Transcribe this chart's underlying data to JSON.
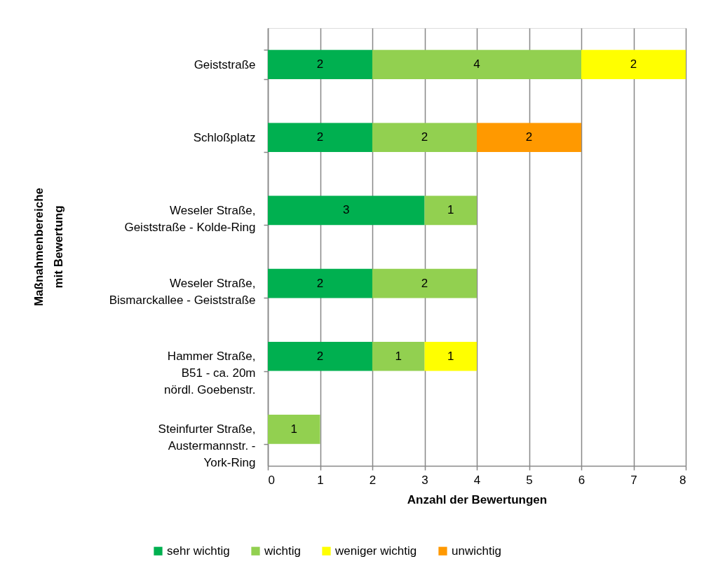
{
  "chart_data": {
    "type": "bar",
    "orientation": "horizontal",
    "stacked": true,
    "categories": [
      "Geiststraße",
      "Schloßplatz",
      "Weseler Straße,\nGeiststraße - Kolde-Ring",
      "Weseler Straße,\nBismarckallee - Geiststraße",
      "Hammer Straße,\nB51 - ca. 20m\nnördl. Goebenstr.",
      "Steinfurter Straße,\nAustermannstr. -\nYork-Ring"
    ],
    "series": [
      {
        "name": "sehr wichtig",
        "color": "#00b050",
        "values": [
          2,
          2,
          3,
          2,
          2,
          null
        ]
      },
      {
        "name": "wichtig",
        "color": "#92d050",
        "values": [
          4,
          2,
          1,
          2,
          1,
          1
        ]
      },
      {
        "name": "weniger wichtig",
        "color": "#ffff00",
        "values": [
          2,
          null,
          null,
          null,
          1,
          null
        ]
      },
      {
        "name": "unwichtig",
        "color": "#ff9900",
        "values": [
          null,
          2,
          null,
          null,
          null,
          null
        ]
      }
    ],
    "xlabel": "Anzahl der Bewertungen",
    "ylabel": "Maßnahmenbereiche\nmit Bewertung",
    "xlim": [
      0,
      8
    ],
    "xticks": [
      0,
      1,
      2,
      3,
      4,
      5,
      6,
      7,
      8
    ],
    "grid": "x",
    "legend": "bottom",
    "data_labels": true
  }
}
